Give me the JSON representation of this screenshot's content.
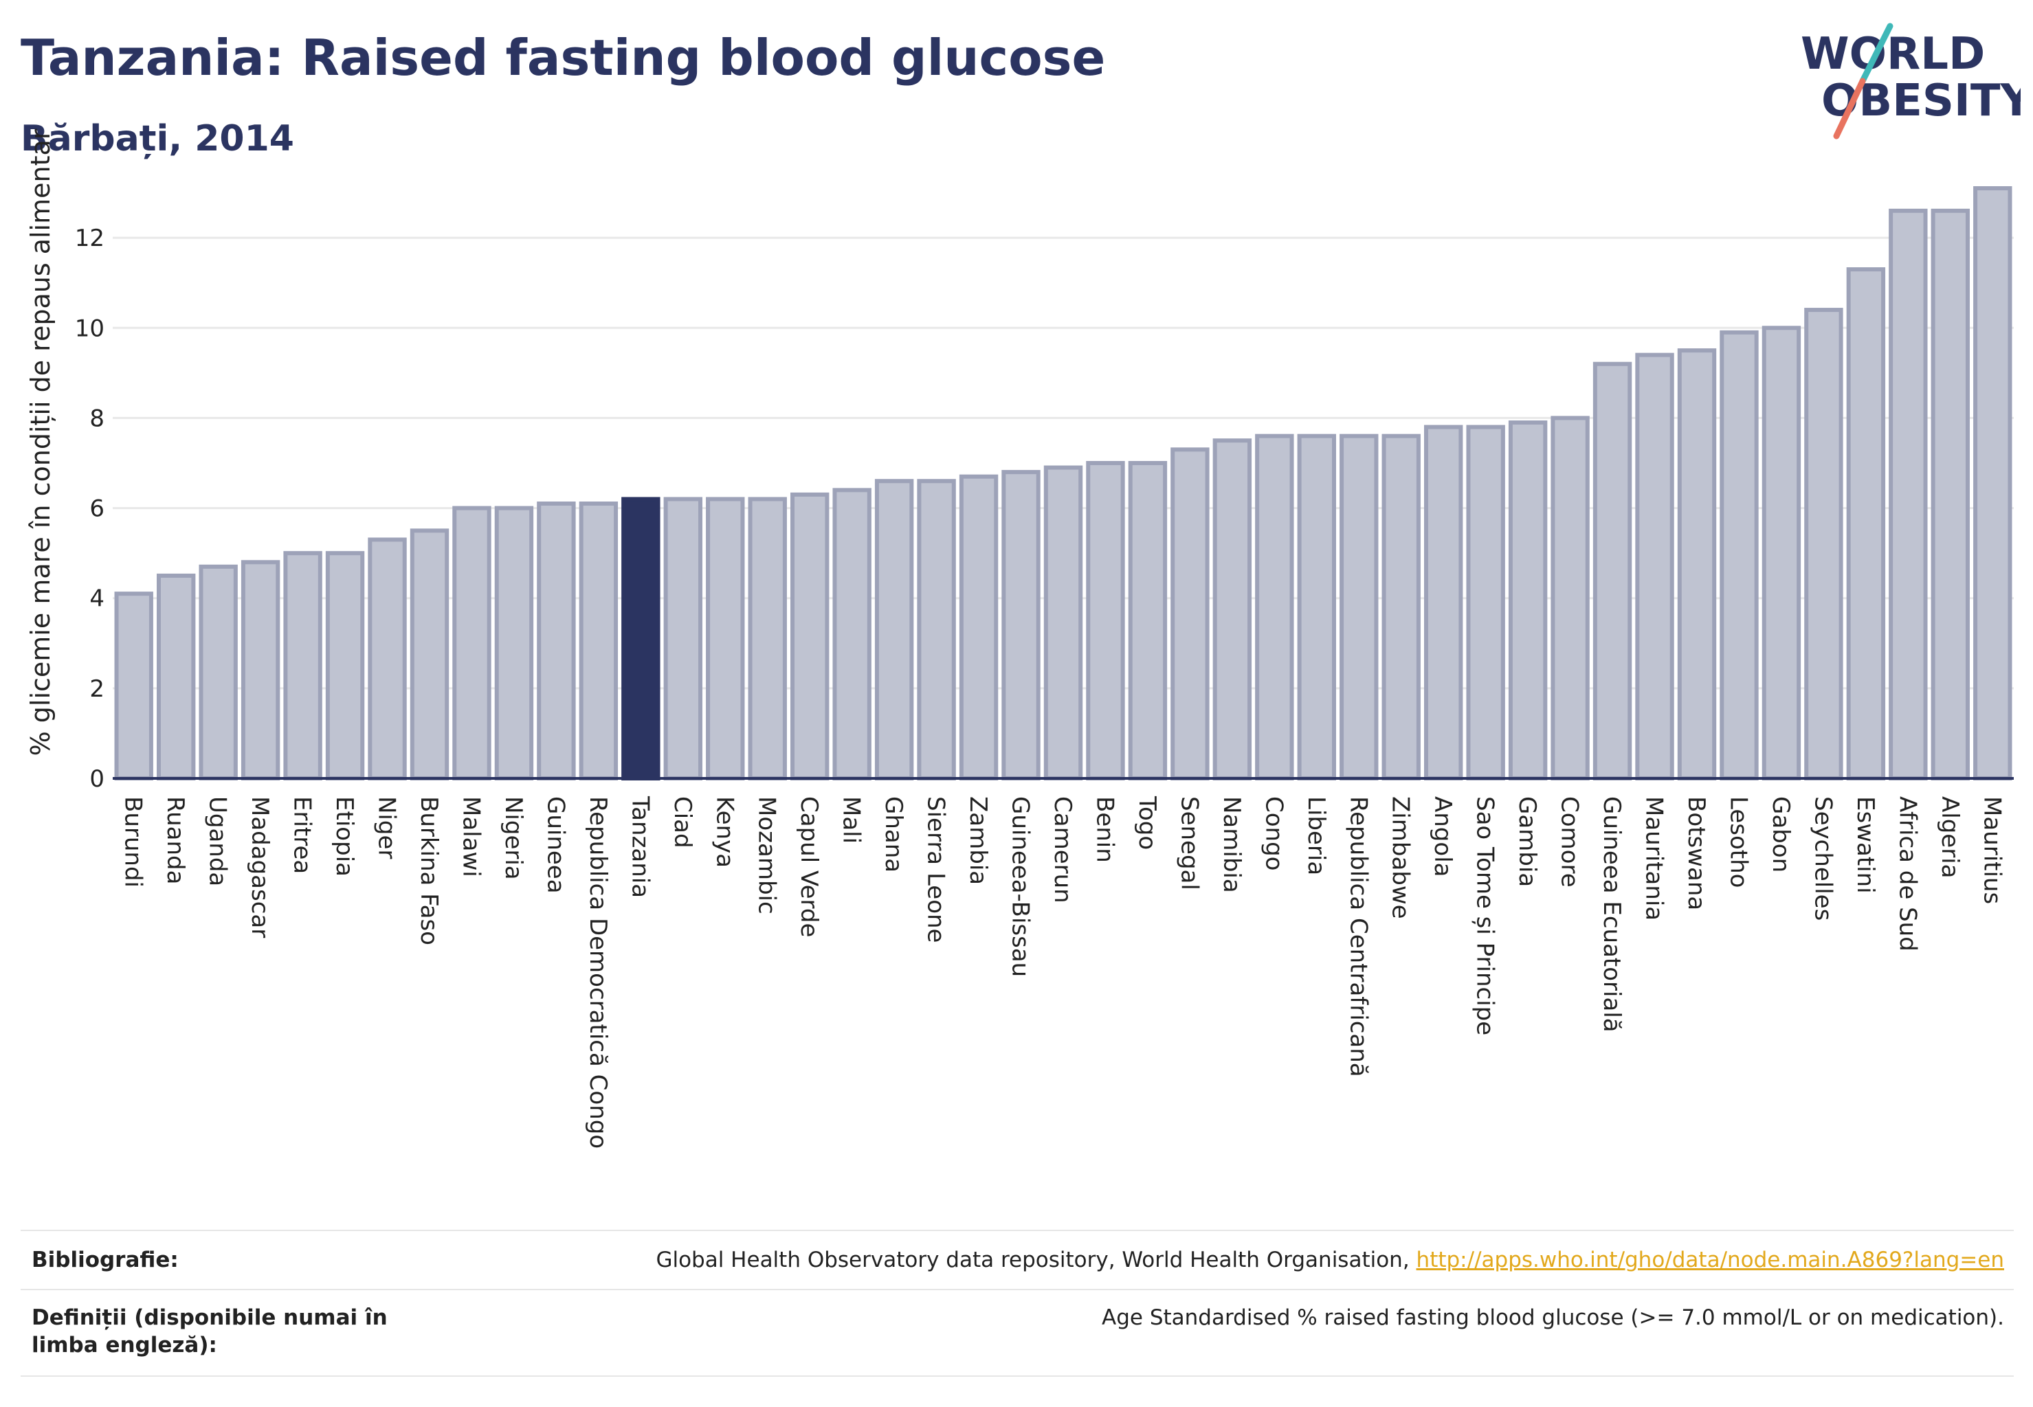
{
  "header": {
    "title": "Tanzania: Raised fasting blood glucose",
    "subtitle": "Bărbați, 2014",
    "logo_line1": "WORLD",
    "logo_line2": "OBESITY"
  },
  "colors": {
    "bar": "#bfc3d1",
    "bar_edge": "#9da2b8",
    "highlight": "#2b3461",
    "grid": "#e8e8e8",
    "axis": "#2b3461",
    "logo_teal": "#3fb8b8",
    "logo_coral": "#e8735f"
  },
  "chart_data": {
    "type": "bar",
    "ylabel": "% glicemie mare în condiții de repaus alimentar",
    "ylim": [
      0,
      14
    ],
    "yticks": [
      0,
      2,
      4,
      6,
      8,
      10,
      12
    ],
    "grid": true,
    "highlight": "Tanzania",
    "categories": [
      "Burundi",
      "Ruanda",
      "Uganda",
      "Madagascar",
      "Eritrea",
      "Etiopia",
      "Niger",
      "Burkina Faso",
      "Malawi",
      "Nigeria",
      "Guineea",
      "Republica Democratică Congo",
      "Tanzania",
      "Ciad",
      "Kenya",
      "Mozambic",
      "Capul Verde",
      "Mali",
      "Ghana",
      "Sierra Leone",
      "Zambia",
      "Guineea-Bissau",
      "Camerun",
      "Benin",
      "Togo",
      "Senegal",
      "Namibia",
      "Congo",
      "Liberia",
      "Republica Centrafricană",
      "Zimbabwe",
      "Angola",
      "Sao Tome și Principe",
      "Gambia",
      "Comore",
      "Guineea Ecuatorială",
      "Mauritania",
      "Botswana",
      "Lesotho",
      "Gabon",
      "Seychelles",
      "Eswatini",
      "Africa de Sud",
      "Algeria",
      "Mauritius"
    ],
    "values": [
      4.1,
      4.5,
      4.7,
      4.8,
      5.0,
      5.0,
      5.3,
      5.5,
      6.0,
      6.0,
      6.1,
      6.1,
      6.2,
      6.2,
      6.2,
      6.2,
      6.3,
      6.4,
      6.6,
      6.6,
      6.7,
      6.8,
      6.9,
      7.0,
      7.0,
      7.3,
      7.5,
      7.6,
      7.6,
      7.6,
      7.6,
      7.8,
      7.8,
      7.9,
      8.0,
      9.2,
      9.4,
      9.5,
      9.9,
      10.0,
      10.4,
      11.3,
      12.6,
      12.6,
      13.1
    ]
  },
  "footer": {
    "bibliography_label": "Bibliografie:",
    "bibliography_text": "Global Health Observatory data repository, World Health Organisation, ",
    "bibliography_link": "http://apps.who.int/gho/data/node.main.A869?lang=en",
    "definitions_label": "Definiții (disponibile numai în limba engleză):",
    "definitions_text": "Age Standardised % raised fasting blood glucose (>= 7.0 mmol/L or on medication)."
  }
}
